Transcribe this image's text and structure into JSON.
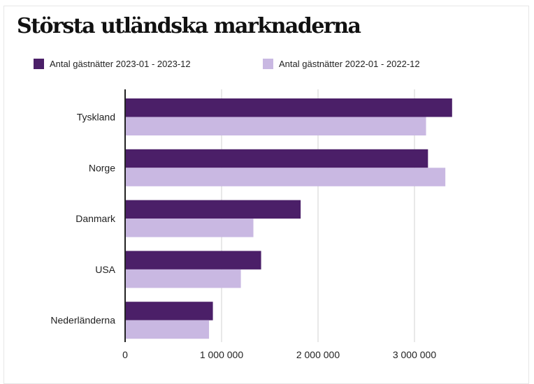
{
  "chart_data": {
    "type": "bar",
    "orientation": "horizontal",
    "title": "Största utländska marknaderna",
    "categories": [
      "Tyskland",
      "Norge",
      "Danmark",
      "USA",
      "Nederländerna"
    ],
    "series": [
      {
        "name": "Antal gästnätter 2023-01 - 2023-12",
        "color": "#4b1f68",
        "values": [
          3390000,
          3140000,
          1820000,
          1410000,
          910000
        ]
      },
      {
        "name": "Antal gästnätter 2022-01 - 2022-12",
        "color": "#c9b8e2",
        "values": [
          3120000,
          3320000,
          1330000,
          1200000,
          870000
        ]
      }
    ],
    "xlim": [
      0,
      3400000
    ],
    "xticks": [
      0,
      1000000,
      2000000,
      3000000
    ],
    "xtick_labels": [
      "0",
      "1 000 000",
      "2 000 000",
      "3 000 000"
    ],
    "grid": "vertical",
    "legend": "top"
  }
}
